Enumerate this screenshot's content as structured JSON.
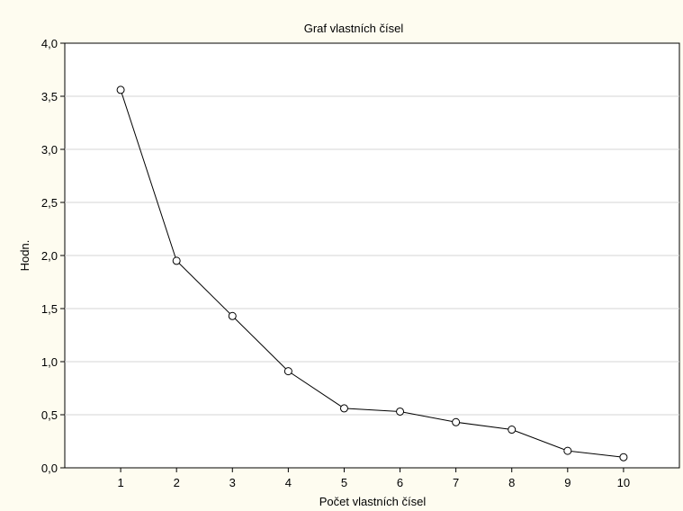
{
  "chart_data": {
    "type": "line",
    "title": "Graf vlastních čísel",
    "xlabel": "Počet vlastních čísel",
    "ylabel": "Hodn.",
    "x": [
      1,
      2,
      3,
      4,
      5,
      6,
      7,
      8,
      9,
      10
    ],
    "x_tick_labels": [
      "1",
      "2",
      "3",
      "4",
      "5",
      "6",
      "7",
      "8",
      "9",
      "10"
    ],
    "y_tick_labels": [
      "0,0",
      "0,5",
      "1,0",
      "1,5",
      "2,0",
      "2,5",
      "3,0",
      "3,5",
      "4,0"
    ],
    "y_ticks": [
      0,
      0.5,
      1.0,
      1.5,
      2.0,
      2.5,
      3.0,
      3.5,
      4.0
    ],
    "xlim": [
      0,
      11
    ],
    "ylim": [
      0,
      4.0
    ],
    "grid": "horizontal",
    "marker": "open-circle",
    "series": [
      {
        "values": [
          3.56,
          1.95,
          1.43,
          0.91,
          0.56,
          0.53,
          0.43,
          0.36,
          0.16,
          0.1
        ]
      }
    ],
    "colors": {
      "background": "#fefcf0",
      "plot_background": "#ffffff",
      "line": "#000000",
      "grid": "#d4d4d4"
    }
  }
}
